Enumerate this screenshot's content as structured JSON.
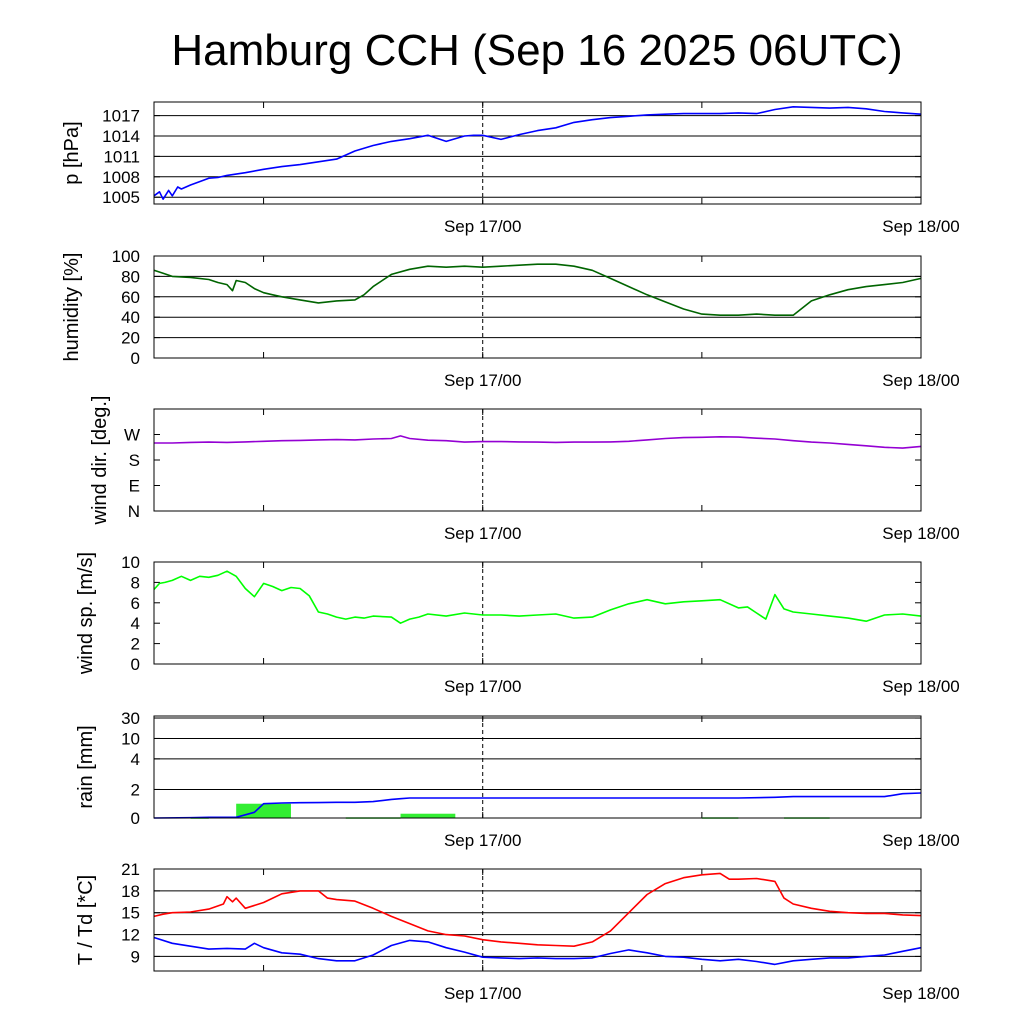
{
  "title": "Hamburg CCH (Sep 16 2025 06UTC)",
  "colors": {
    "pressure": "#0000ff",
    "humidity": "#006400",
    "wind_dir": "#9400d3",
    "wind_speed": "#00ff00",
    "rain_bar": "#33ee33",
    "rain_cum": "#0000ff",
    "temperature": "#ff0000",
    "dewpoint": "#0000ff"
  },
  "chart_data": [
    {
      "type": "line",
      "title": "",
      "ylabel": "p [hPa]",
      "xlabel": "",
      "xlim": [
        0,
        42
      ],
      "ylim": [
        1004,
        1019
      ],
      "xticks": [
        6,
        18,
        30,
        42
      ],
      "xtick_labels": [
        {
          "x": 18,
          "label": "Sep 17/00"
        },
        {
          "x": 42,
          "label": "Sep 18/00"
        }
      ],
      "yticks": [
        1005,
        1008,
        1011,
        1014,
        1017
      ],
      "ytick_labels": [
        "1005",
        "1008",
        "1011",
        "1014",
        "1017"
      ],
      "grid": "horizontal",
      "series": [
        {
          "color_key": "pressure",
          "x": [
            0,
            0.3,
            0.5,
            0.8,
            1,
            1.3,
            1.5,
            2,
            2.5,
            3,
            3.5,
            4,
            5,
            6,
            7,
            8,
            9,
            10,
            11,
            12,
            13,
            14,
            15,
            16,
            17,
            17.5,
            18,
            19,
            20,
            21,
            22,
            23,
            24,
            25,
            26,
            27,
            28,
            29,
            30,
            31,
            32,
            33,
            34,
            35,
            36,
            37,
            38,
            39,
            40,
            41,
            42
          ],
          "y": [
            1005.2,
            1005.8,
            1004.7,
            1006,
            1005.2,
            1006.5,
            1006.2,
            1006.8,
            1007.3,
            1007.8,
            1007.9,
            1008.2,
            1008.6,
            1009.1,
            1009.5,
            1009.8,
            1010.2,
            1010.6,
            1011.8,
            1012.6,
            1013.2,
            1013.6,
            1014.1,
            1013.2,
            1014.0,
            1014.1,
            1014.1,
            1013.5,
            1014.2,
            1014.8,
            1015.2,
            1016.0,
            1016.4,
            1016.7,
            1016.9,
            1017.1,
            1017.2,
            1017.3,
            1017.3,
            1017.3,
            1017.4,
            1017.3,
            1017.9,
            1018.3,
            1018.2,
            1018.1,
            1018.2,
            1018.0,
            1017.6,
            1017.4,
            1017.2
          ]
        }
      ]
    },
    {
      "type": "line",
      "title": "",
      "ylabel": "humidity [%]",
      "xlabel": "",
      "xlim": [
        0,
        42
      ],
      "ylim": [
        0,
        100
      ],
      "xticks": [
        6,
        18,
        30,
        42
      ],
      "xtick_labels": [
        {
          "x": 18,
          "label": "Sep 17/00"
        },
        {
          "x": 42,
          "label": "Sep 18/00"
        }
      ],
      "yticks": [
        0,
        20,
        40,
        60,
        80,
        100
      ],
      "ytick_labels": [
        "0",
        "20",
        "40",
        "60",
        "80",
        "100"
      ],
      "grid": "horizontal",
      "series": [
        {
          "color_key": "humidity",
          "x": [
            0,
            0.5,
            1,
            2,
            3,
            3.5,
            4,
            4.3,
            4.5,
            5,
            5.5,
            6,
            6.5,
            7,
            8,
            9,
            10,
            11,
            11.5,
            12,
            13,
            14,
            15,
            16,
            17,
            18,
            19,
            20,
            21,
            22,
            23,
            24,
            25,
            26,
            27,
            28,
            29,
            30,
            31,
            32,
            33,
            34,
            35,
            36,
            37,
            38,
            39,
            40,
            41,
            42
          ],
          "y": [
            86,
            83,
            80,
            79,
            77,
            74,
            72,
            66,
            76,
            74,
            68,
            64,
            62,
            60,
            57,
            54,
            56,
            57,
            62,
            70,
            82,
            87,
            90,
            89,
            90,
            89,
            90,
            91,
            92,
            92,
            90,
            86,
            78,
            70,
            62,
            55,
            48,
            43,
            42,
            42,
            43,
            42,
            42,
            56,
            62,
            67,
            70,
            72,
            74,
            78
          ]
        }
      ]
    },
    {
      "type": "line",
      "title": "",
      "ylabel": "wind dir. [deg.]",
      "xlabel": "",
      "xlim": [
        0,
        42
      ],
      "ylim": [
        0,
        360
      ],
      "xticks": [
        6,
        18,
        30,
        42
      ],
      "xtick_labels": [
        {
          "x": 18,
          "label": "Sep 17/00"
        },
        {
          "x": 42,
          "label": "Sep 18/00"
        }
      ],
      "yticks": [
        0,
        90,
        180,
        270
      ],
      "ytick_labels": [
        "N",
        "E",
        "S",
        "W"
      ],
      "grid": "none",
      "series": [
        {
          "color_key": "wind_dir",
          "x": [
            0,
            1,
            2,
            3,
            4,
            5,
            6,
            7,
            8,
            9,
            10,
            11,
            12,
            13,
            13.5,
            14,
            15,
            16,
            17,
            18,
            19,
            20,
            21,
            22,
            23,
            24,
            25,
            26,
            27,
            28,
            29,
            30,
            31,
            32,
            33,
            34,
            35,
            36,
            37,
            38,
            39,
            40,
            41,
            42
          ],
          "y": [
            240,
            240,
            242,
            243,
            242,
            244,
            246,
            248,
            249,
            251,
            252,
            251,
            254,
            256,
            265,
            256,
            250,
            248,
            243,
            245,
            245,
            244,
            243,
            242,
            243,
            243,
            244,
            246,
            251,
            256,
            259,
            260,
            262,
            261,
            257,
            254,
            248,
            243,
            240,
            235,
            230,
            225,
            222,
            228
          ]
        }
      ]
    },
    {
      "type": "line",
      "title": "",
      "ylabel": "wind sp. [m/s]",
      "xlabel": "",
      "xlim": [
        0,
        42
      ],
      "ylim": [
        0,
        10
      ],
      "xticks": [
        6,
        18,
        30,
        42
      ],
      "xtick_labels": [
        {
          "x": 18,
          "label": "Sep 17/00"
        },
        {
          "x": 42,
          "label": "Sep 18/00"
        }
      ],
      "yticks": [
        0,
        2,
        4,
        6,
        8,
        10
      ],
      "ytick_labels": [
        "0",
        "2",
        "4",
        "6",
        "8",
        "10"
      ],
      "grid": "none",
      "series": [
        {
          "color_key": "wind_speed",
          "x": [
            0,
            0.3,
            0.6,
            1,
            1.5,
            2,
            2.5,
            3,
            3.5,
            4,
            4.5,
            5,
            5.5,
            6,
            6.5,
            7,
            7.5,
            8,
            8.5,
            9,
            9.5,
            10,
            10.5,
            11,
            11.5,
            12,
            13,
            13.5,
            14,
            14.5,
            15,
            16,
            17,
            18,
            19,
            20,
            21,
            22,
            23,
            24,
            25,
            26,
            27,
            28,
            29,
            30,
            31,
            32,
            32.5,
            33,
            33.5,
            34,
            34.5,
            35,
            36,
            37,
            38,
            39,
            40,
            41,
            42
          ],
          "y": [
            7.3,
            7.9,
            8.0,
            8.2,
            8.6,
            8.2,
            8.6,
            8.5,
            8.7,
            9.1,
            8.6,
            7.4,
            6.6,
            7.9,
            7.6,
            7.2,
            7.5,
            7.4,
            6.7,
            5.1,
            4.9,
            4.6,
            4.4,
            4.6,
            4.5,
            4.7,
            4.6,
            4.0,
            4.4,
            4.6,
            4.9,
            4.7,
            5.0,
            4.8,
            4.8,
            4.7,
            4.8,
            4.9,
            4.5,
            4.6,
            5.3,
            5.9,
            6.3,
            5.9,
            6.1,
            6.2,
            6.3,
            5.5,
            5.6,
            5.0,
            4.4,
            6.8,
            5.4,
            5.1,
            4.9,
            4.7,
            4.5,
            4.2,
            4.8,
            4.9,
            4.7
          ]
        }
      ]
    },
    {
      "type": "bar",
      "title": "",
      "ylabel": "rain [mm]",
      "xlabel": "",
      "xlim": [
        0,
        42
      ],
      "scale": "nonlinear",
      "yticks": [
        0,
        2,
        4,
        10,
        30
      ],
      "ytick_labels": [
        "0",
        "2",
        "4",
        "10",
        "30"
      ],
      "xticks": [
        6,
        18,
        30,
        42
      ],
      "xtick_labels": [
        {
          "x": 18,
          "label": "Sep 17/00"
        },
        {
          "x": 42,
          "label": "Sep 18/00"
        }
      ],
      "grid": "horizontal",
      "bars": [
        {
          "x0": 2,
          "x1": 3,
          "value": 0.05
        },
        {
          "x0": 4.5,
          "x1": 7.5,
          "value": 1.0
        },
        {
          "x0": 10.5,
          "x1": 13.5,
          "value": 0.05
        },
        {
          "x0": 13.5,
          "x1": 16.5,
          "value": 0.3
        },
        {
          "x0": 30,
          "x1": 32,
          "value": 0.05
        },
        {
          "x0": 34.5,
          "x1": 37,
          "value": 0.05
        }
      ],
      "series": [
        {
          "name": "",
          "color_key": "rain_cum",
          "type": "line",
          "x": [
            0,
            2,
            3,
            4.5,
            5.5,
            6,
            7,
            8,
            9,
            10,
            11,
            12,
            13,
            13.5,
            14,
            15,
            16,
            18,
            20,
            22,
            24,
            26,
            28,
            30,
            32,
            34,
            35,
            36,
            38,
            40,
            41,
            42
          ],
          "y": [
            0,
            0.02,
            0.05,
            0.05,
            0.4,
            1.0,
            1.05,
            1.07,
            1.08,
            1.1,
            1.1,
            1.15,
            1.3,
            1.35,
            1.4,
            1.4,
            1.4,
            1.4,
            1.4,
            1.4,
            1.4,
            1.4,
            1.4,
            1.4,
            1.4,
            1.45,
            1.5,
            1.5,
            1.5,
            1.5,
            1.7,
            1.75
          ]
        }
      ]
    },
    {
      "type": "line",
      "title": "",
      "ylabel": "T / Td [*C]",
      "xlabel": "",
      "xlim": [
        0,
        42
      ],
      "ylim": [
        7,
        21
      ],
      "xticks": [
        6,
        18,
        30,
        42
      ],
      "xtick_labels": [
        {
          "x": 18,
          "label": "Sep 17/00"
        },
        {
          "x": 42,
          "label": "Sep 18/00"
        }
      ],
      "yticks": [
        9,
        12,
        15,
        18,
        21
      ],
      "ytick_labels": [
        "9",
        "12",
        "15",
        "18",
        "21"
      ],
      "grid": "horizontal",
      "series": [
        {
          "color_key": "temperature",
          "x": [
            0,
            0.5,
            1,
            2,
            3,
            3.8,
            4,
            4.3,
            4.5,
            5,
            6,
            7,
            8,
            9,
            9.5,
            10,
            11,
            12,
            13,
            14,
            15,
            16,
            17,
            18,
            19,
            20,
            21,
            22,
            23,
            24,
            25,
            26,
            27,
            28,
            29,
            30,
            31,
            31.5,
            32,
            33,
            34,
            34.5,
            35,
            36,
            37,
            38,
            39,
            40,
            41,
            42
          ],
          "y": [
            14.5,
            14.8,
            15.0,
            15.1,
            15.5,
            16.2,
            17.2,
            16.5,
            17.0,
            15.6,
            16.4,
            17.6,
            18.0,
            18.0,
            17.0,
            16.8,
            16.6,
            15.6,
            14.5,
            13.5,
            12.5,
            12.0,
            11.8,
            11.3,
            11.0,
            10.8,
            10.6,
            10.5,
            10.4,
            11.0,
            12.5,
            15.0,
            17.5,
            19.0,
            19.8,
            20.2,
            20.4,
            19.6,
            19.6,
            19.7,
            19.3,
            17.0,
            16.2,
            15.6,
            15.2,
            15.0,
            14.9,
            14.9,
            14.7,
            14.6
          ]
        },
        {
          "color_key": "dewpoint",
          "x": [
            0,
            1,
            2,
            3,
            4,
            5,
            5.5,
            6,
            7,
            8,
            9,
            10,
            11,
            12,
            13,
            14,
            15,
            16,
            17,
            18,
            19,
            20,
            21,
            22,
            23,
            24,
            25,
            26,
            27,
            28,
            29,
            30,
            31,
            32,
            33,
            34,
            35,
            36,
            37,
            38,
            39,
            40,
            41,
            42
          ],
          "y": [
            11.6,
            10.8,
            10.4,
            10.0,
            10.1,
            10.0,
            10.8,
            10.2,
            9.5,
            9.3,
            8.7,
            8.4,
            8.4,
            9.2,
            10.5,
            11.2,
            11.0,
            10.2,
            9.6,
            8.9,
            8.8,
            8.7,
            8.8,
            8.7,
            8.7,
            8.8,
            9.4,
            9.9,
            9.5,
            9.0,
            8.9,
            8.6,
            8.4,
            8.6,
            8.3,
            7.9,
            8.4,
            8.6,
            8.8,
            8.8,
            9.0,
            9.2,
            9.7,
            10.2
          ]
        }
      ]
    }
  ]
}
